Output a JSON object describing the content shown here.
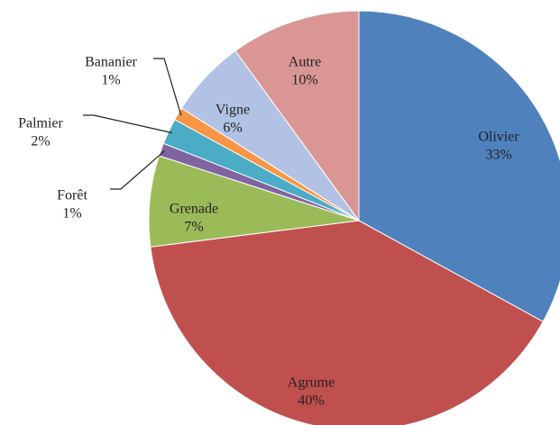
{
  "chart_data": {
    "type": "pie",
    "categories": [
      "Olivier",
      "Agrume",
      "Grenade",
      "Forêt",
      "Palmier",
      "Bananier",
      "Vigne",
      "Autre"
    ],
    "values": [
      33,
      40,
      7,
      1,
      2,
      1,
      6,
      10
    ],
    "value_labels": [
      "33%",
      "40%",
      "7%",
      "1%",
      "2%",
      "1%",
      "6%",
      "10%"
    ],
    "colors": [
      "#4f81bd",
      "#c0504d",
      "#9bbb59",
      "#8064a2",
      "#4bacc6",
      "#f79646",
      "#b2c2e4",
      "#d99694"
    ]
  }
}
